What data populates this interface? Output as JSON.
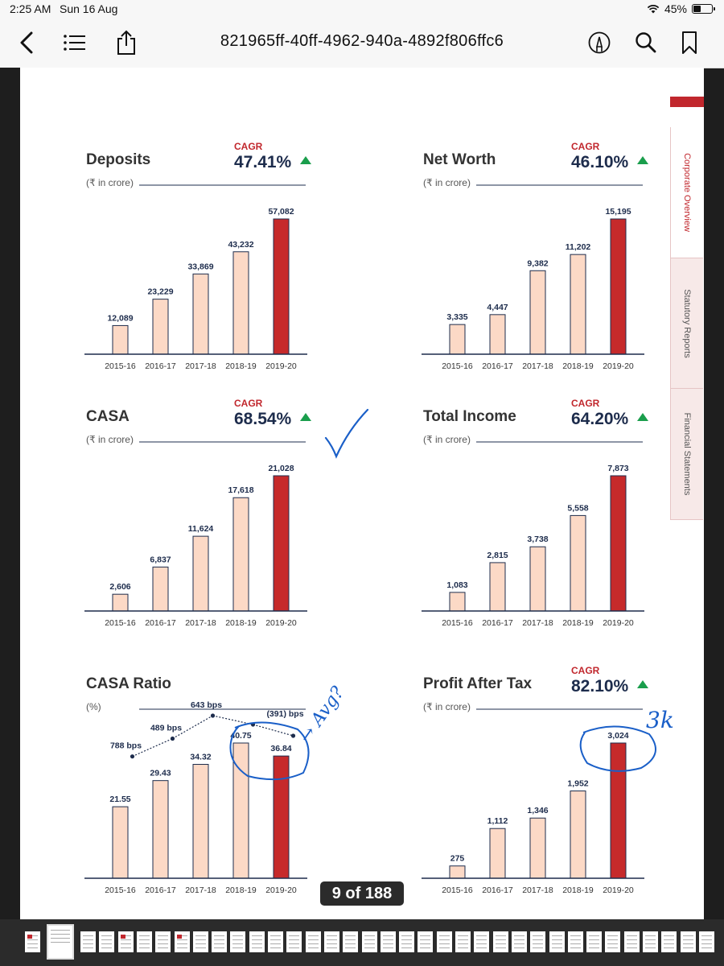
{
  "status_bar": {
    "time": "2:25 AM",
    "date": "Sun 16 Aug",
    "battery": "45%",
    "battery_level": 0.45
  },
  "toolbar": {
    "title": "821965ff-40ff-4962-940a-4892f806ffc6",
    "icons": [
      "back-icon",
      "list-icon",
      "share-icon",
      "markup-pen-icon",
      "search-icon",
      "bookmark-icon"
    ]
  },
  "side_tabs": [
    "Corporate Overview",
    "Statutory Reports",
    "Financial Statements"
  ],
  "page_counter": "9 of 188",
  "annotations": {
    "tick": "✓",
    "arrow_text": "→ Avg?",
    "pat_note": "3k"
  },
  "colors": {
    "bar_light": "#fcd9c6",
    "bar_highlight": "#c62a2b",
    "value_text": "#1d2c4c",
    "cagr_label": "#c1272d",
    "cagr_up_arrow": "#1a9e4c",
    "ink": "#1a5fc8"
  },
  "chart_data": [
    {
      "type": "bar",
      "title": "Deposits",
      "unit": "(₹ in crore)",
      "cagr_label": "CAGR",
      "cagr": "47.41%",
      "categories": [
        "2015-16",
        "2016-17",
        "2017-18",
        "2018-19",
        "2019-20"
      ],
      "values": [
        12089,
        23229,
        33869,
        43232,
        57082
      ],
      "value_labels": [
        "12,089",
        "23,229",
        "33,869",
        "43,232",
        "57,082"
      ],
      "highlight_index": 4,
      "ylim": [
        0,
        57082
      ]
    },
    {
      "type": "bar",
      "title": "Net Worth",
      "unit": "(₹ in crore)",
      "cagr_label": "CAGR",
      "cagr": "46.10%",
      "categories": [
        "2015-16",
        "2016-17",
        "2017-18",
        "2018-19",
        "2019-20"
      ],
      "values": [
        3335,
        4447,
        9382,
        11202,
        15195
      ],
      "value_labels": [
        "3,335",
        "4,447",
        "9,382",
        "11,202",
        "15,195"
      ],
      "highlight_index": 4,
      "ylim": [
        0,
        15195
      ]
    },
    {
      "type": "bar",
      "title": "CASA",
      "unit": "(₹ in crore)",
      "cagr_label": "CAGR",
      "cagr": "68.54%",
      "categories": [
        "2015-16",
        "2016-17",
        "2017-18",
        "2018-19",
        "2019-20"
      ],
      "values": [
        2606,
        6837,
        11624,
        17618,
        21028
      ],
      "value_labels": [
        "2,606",
        "6,837",
        "11,624",
        "17,618",
        "21,028"
      ],
      "highlight_index": 4,
      "ylim": [
        0,
        21028
      ]
    },
    {
      "type": "bar",
      "title": "Total Income",
      "unit": "(₹ in crore)",
      "cagr_label": "CAGR",
      "cagr": "64.20%",
      "categories": [
        "2015-16",
        "2016-17",
        "2017-18",
        "2018-19",
        "2019-20"
      ],
      "values": [
        1083,
        2815,
        3738,
        5558,
        7873
      ],
      "value_labels": [
        "1,083",
        "2,815",
        "3,738",
        "5,558",
        "7,873"
      ],
      "highlight_index": 4,
      "ylim": [
        0,
        7873
      ]
    },
    {
      "type": "bar",
      "title": "CASA Ratio",
      "unit": "(%)",
      "cagr_label": "",
      "cagr": "",
      "categories": [
        "2015-16",
        "2016-17",
        "2017-18",
        "2018-19",
        "2019-20"
      ],
      "values": [
        21.55,
        29.43,
        34.32,
        40.75,
        36.84
      ],
      "value_labels": [
        "21.55",
        "29.43",
        "34.32",
        "40.75",
        "36.84"
      ],
      "highlight_index": 4,
      "ylim": [
        0,
        40.75
      ],
      "changes": [
        "788 bps",
        "489 bps",
        "643 bps",
        "(391) bps"
      ],
      "change_values_bps": [
        788,
        489,
        643,
        -391
      ]
    },
    {
      "type": "bar",
      "title": "Profit After Tax",
      "unit": "(₹ in crore)",
      "cagr_label": "CAGR",
      "cagr": "82.10%",
      "categories": [
        "2015-16",
        "2016-17",
        "2017-18",
        "2018-19",
        "2019-20"
      ],
      "values": [
        275,
        1112,
        1346,
        1952,
        3024
      ],
      "value_labels": [
        "275",
        "1,112",
        "1,346",
        "1,952",
        "3,024"
      ],
      "highlight_index": 4,
      "ylim": [
        0,
        3024
      ]
    }
  ]
}
